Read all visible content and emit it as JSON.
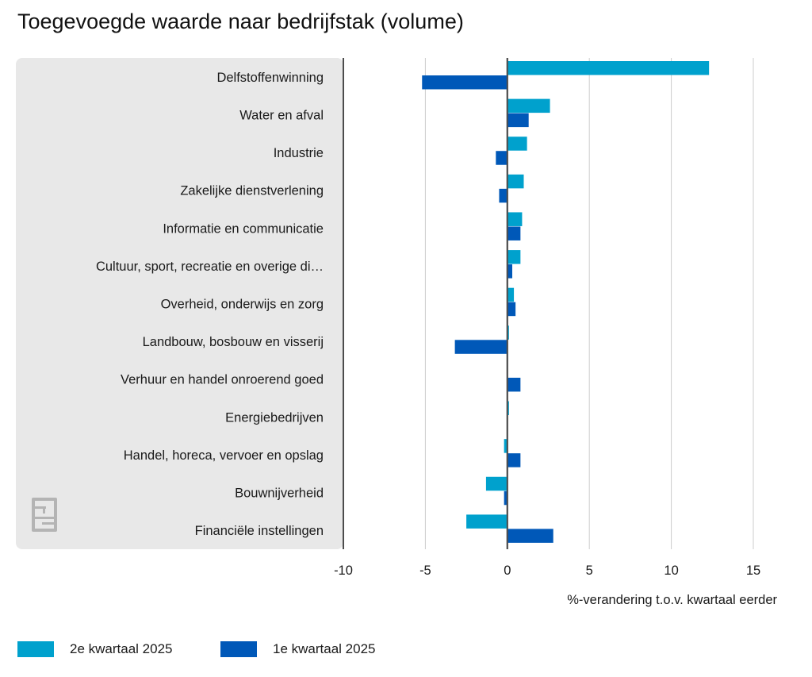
{
  "title": "Toegevoegde waarde naar bedrijfstak (volume)",
  "colors": {
    "series1": "#00a1cd",
    "series2": "#0058b8",
    "panel": "#e8e8e8",
    "grid": "#cccccc",
    "axis": "#4d4d4d"
  },
  "logo_text": "cbs",
  "chart_data": {
    "type": "bar",
    "orientation": "horizontal",
    "title": "Toegevoegde waarde naar bedrijfstak (volume)",
    "xlabel": "%-verandering t.o.v. kwartaal eerder",
    "ylabel": "",
    "xlim": [
      -10,
      15
    ],
    "xticks": [
      "-10",
      "-5",
      "0",
      "5",
      "10",
      "15"
    ],
    "categories": [
      "Delfstoffenwinning",
      "Water en afval",
      "Industrie",
      "Zakelijke dienstverlening",
      "Informatie en communicatie",
      "Cultuur, sport, recreatie en overige di…",
      "Overheid, onderwijs en zorg",
      "Landbouw, bosbouw en visserij",
      "Verhuur en handel onroerend goed",
      "Energiebedrijven",
      "Handel, horeca, vervoer en opslag",
      "Bouwnijverheid",
      "Financiële instellingen"
    ],
    "series": [
      {
        "name": "2e kwartaal 2025",
        "values": [
          12.3,
          2.6,
          1.2,
          1.0,
          0.9,
          0.8,
          0.4,
          0.1,
          0.0,
          0.1,
          -0.2,
          -1.3,
          -2.5
        ]
      },
      {
        "name": "1e kwartaal 2025",
        "values": [
          -5.2,
          1.3,
          -0.7,
          -0.5,
          0.8,
          0.3,
          0.5,
          -3.2,
          0.8,
          0.0,
          0.8,
          -0.2,
          2.8
        ]
      }
    ],
    "grid": true,
    "legend": "bottom-left"
  }
}
